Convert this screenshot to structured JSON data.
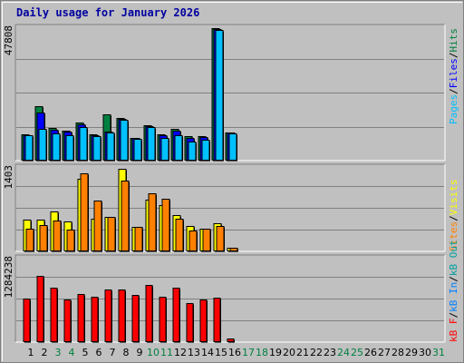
{
  "title": "Daily usage for January 2026",
  "colors": {
    "hits": "#008040",
    "files": "#0000ff",
    "pages": "#00c0ff",
    "visits": "#ffff00",
    "sites": "#ff8000",
    "kbin": "#0080ff",
    "kbout": "#00a0a0",
    "kbf": "#ff0000",
    "panel": "#c0c0c0",
    "grid": "#808080",
    "weekday_label": "#000000",
    "weekend_label": "#008040"
  },
  "chart_data": [
    {
      "type": "bar",
      "name": "hits-files-pages",
      "categories": [
        "1",
        "2",
        "3",
        "4",
        "5",
        "6",
        "7",
        "8",
        "9",
        "10",
        "11",
        "12",
        "13",
        "14",
        "15",
        "16",
        "17",
        "18",
        "19",
        "20",
        "21",
        "22",
        "23",
        "24",
        "25",
        "26",
        "27",
        "28",
        "29",
        "30",
        "31"
      ],
      "ymax_label": "47808",
      "ylim": [
        0,
        47808
      ],
      "legend": [
        "Pages",
        "/",
        "Files",
        "/",
        "Hits"
      ],
      "series": [
        {
          "name": "Hits",
          "values": [
            9200,
            19400,
            11300,
            10400,
            13500,
            9300,
            16500,
            15100,
            8000,
            12300,
            9200,
            11100,
            8400,
            8500,
            47400,
            9900,
            0,
            0,
            0,
            0,
            0,
            0,
            0,
            0,
            0,
            0,
            0,
            0,
            0,
            0,
            0
          ]
        },
        {
          "name": "Files",
          "values": [
            9000,
            17100,
            10900,
            10000,
            12900,
            8900,
            10300,
            14600,
            7800,
            12100,
            8700,
            10500,
            7800,
            8100,
            47000,
            9700,
            0,
            0,
            0,
            0,
            0,
            0,
            0,
            0,
            0,
            0,
            0,
            0,
            0,
            0,
            0
          ]
        },
        {
          "name": "Pages",
          "values": [
            8900,
            11000,
            9600,
            8900,
            11900,
            8400,
            9700,
            14300,
            7600,
            11800,
            7900,
            8900,
            6600,
            7300,
            46800,
            9600,
            0,
            0,
            0,
            0,
            0,
            0,
            0,
            0,
            0,
            0,
            0,
            0,
            0,
            0,
            0
          ]
        }
      ]
    },
    {
      "type": "bar",
      "name": "visits-sites",
      "categories": [
        "1",
        "2",
        "3",
        "4",
        "5",
        "6",
        "7",
        "8",
        "9",
        "10",
        "11",
        "12",
        "13",
        "14",
        "15",
        "16",
        "17",
        "18",
        "19",
        "20",
        "21",
        "22",
        "23",
        "24",
        "25",
        "26",
        "27",
        "28",
        "29",
        "30",
        "31"
      ],
      "ymax_label": "1403",
      "ylim": [
        0,
        1403
      ],
      "legend": [
        "Visits",
        "/",
        "Sites"
      ],
      "series": [
        {
          "name": "Visits",
          "values": [
            515,
            515,
            660,
            490,
            1200,
            530,
            560,
            1370,
            400,
            860,
            760,
            590,
            410,
            370,
            460,
            40,
            0,
            0,
            0,
            0,
            0,
            0,
            0,
            0,
            0,
            0,
            0,
            0,
            0,
            0,
            0
          ]
        },
        {
          "name": "Sites",
          "values": [
            360,
            430,
            510,
            350,
            1300,
            840,
            560,
            1170,
            400,
            960,
            870,
            530,
            340,
            370,
            410,
            40,
            0,
            0,
            0,
            0,
            0,
            0,
            0,
            0,
            0,
            0,
            0,
            0,
            0,
            0,
            0
          ]
        }
      ]
    },
    {
      "type": "bar",
      "name": "kbytes",
      "categories": [
        "1",
        "2",
        "3",
        "4",
        "5",
        "6",
        "7",
        "8",
        "9",
        "10",
        "11",
        "12",
        "13",
        "14",
        "15",
        "16",
        "17",
        "18",
        "19",
        "20",
        "21",
        "22",
        "23",
        "24",
        "25",
        "26",
        "27",
        "28",
        "29",
        "30",
        "31"
      ],
      "ymax_label": "1284238",
      "ylim": [
        0,
        1284238
      ],
      "legend": [
        "kB F",
        "/",
        "kB In",
        "/",
        "kB Out"
      ],
      "series": [
        {
          "name": "kB F",
          "values": [
            650000,
            1000000,
            830000,
            640000,
            730000,
            680000,
            790000,
            800000,
            710000,
            860000,
            690000,
            830000,
            590000,
            640000,
            670000,
            40000,
            0,
            0,
            0,
            0,
            0,
            0,
            0,
            0,
            0,
            0,
            0,
            0,
            0,
            0,
            0
          ]
        }
      ]
    }
  ],
  "x_labels": [
    {
      "label": "1",
      "weekend": false
    },
    {
      "label": "2",
      "weekend": false
    },
    {
      "label": "3",
      "weekend": true
    },
    {
      "label": "4",
      "weekend": true
    },
    {
      "label": "5",
      "weekend": false
    },
    {
      "label": "6",
      "weekend": false
    },
    {
      "label": "7",
      "weekend": false
    },
    {
      "label": "8",
      "weekend": false
    },
    {
      "label": "9",
      "weekend": false
    },
    {
      "label": "10",
      "weekend": true
    },
    {
      "label": "11",
      "weekend": true
    },
    {
      "label": "12",
      "weekend": false
    },
    {
      "label": "13",
      "weekend": false
    },
    {
      "label": "14",
      "weekend": false
    },
    {
      "label": "15",
      "weekend": false
    },
    {
      "label": "16",
      "weekend": false
    },
    {
      "label": "17",
      "weekend": true
    },
    {
      "label": "18",
      "weekend": true
    },
    {
      "label": "19",
      "weekend": false
    },
    {
      "label": "20",
      "weekend": false
    },
    {
      "label": "21",
      "weekend": false
    },
    {
      "label": "22",
      "weekend": false
    },
    {
      "label": "23",
      "weekend": false
    },
    {
      "label": "24",
      "weekend": true
    },
    {
      "label": "25",
      "weekend": true
    },
    {
      "label": "26",
      "weekend": false
    },
    {
      "label": "27",
      "weekend": false
    },
    {
      "label": "28",
      "weekend": false
    },
    {
      "label": "29",
      "weekend": false
    },
    {
      "label": "30",
      "weekend": false
    },
    {
      "label": "31",
      "weekend": true
    }
  ]
}
